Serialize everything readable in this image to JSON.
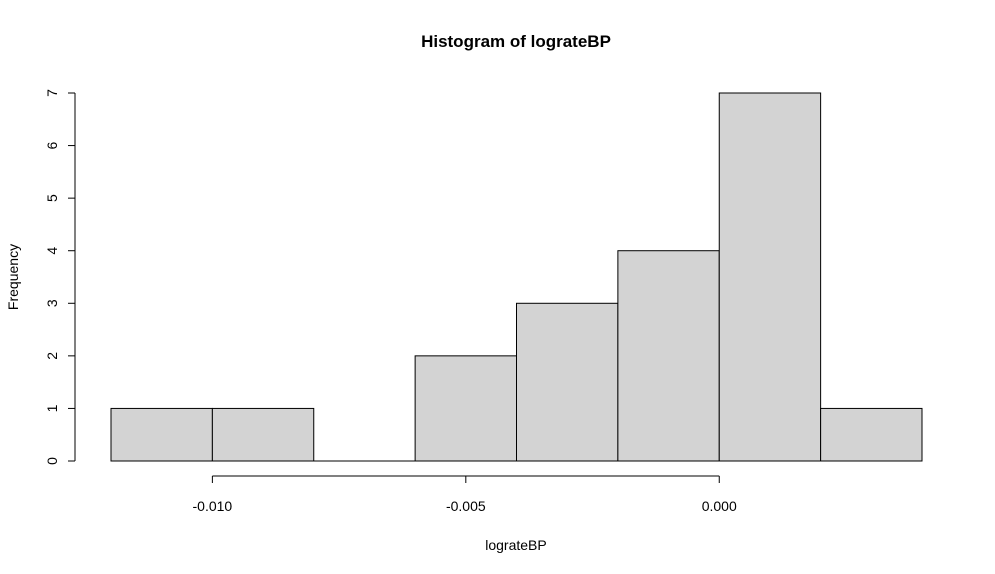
{
  "chart_data": {
    "type": "bar",
    "title": "Histogram of lograteBP",
    "xlabel": "lograteBP",
    "ylabel": "Frequency",
    "bin_edges": [
      -0.012,
      -0.01,
      -0.008,
      -0.006,
      -0.004,
      -0.002,
      0.0,
      0.002,
      0.004
    ],
    "values": [
      1,
      1,
      0,
      2,
      3,
      4,
      7,
      1
    ],
    "bar_color": "#d3d3d3",
    "xlim": [
      -0.012,
      0.004
    ],
    "ylim": [
      0,
      7
    ],
    "x_ticks": [
      -0.01,
      -0.005,
      0.0
    ],
    "x_tick_labels": [
      "-0.010",
      "-0.005",
      "0.000"
    ],
    "y_ticks": [
      0,
      1,
      2,
      3,
      4,
      5,
      6,
      7
    ],
    "y_tick_labels": [
      "0",
      "1",
      "2",
      "3",
      "4",
      "5",
      "6",
      "7"
    ],
    "grid": false,
    "legend": false
  }
}
